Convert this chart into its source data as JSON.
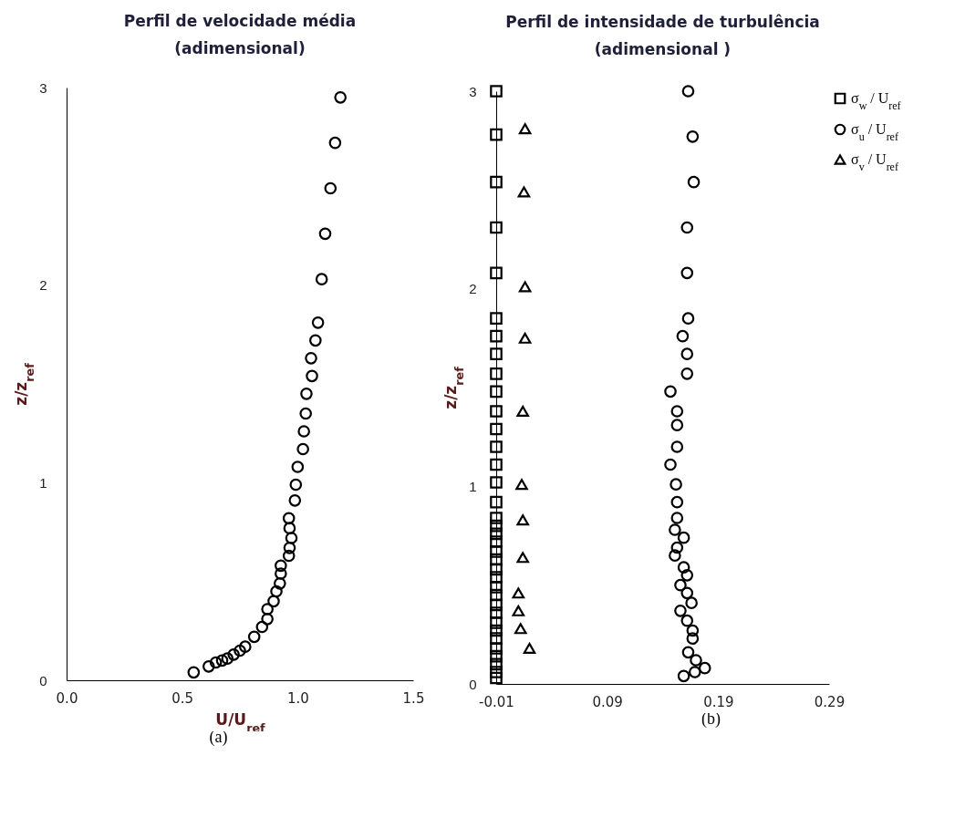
{
  "chart_data": [
    {
      "type": "scatter",
      "title": "Perfil  de velocidade média\n(adimensional)",
      "xlabel": "U/U$_{ref}$",
      "ylabel": "z/z$_{ref}$",
      "annotations": [
        "(a)"
      ],
      "xlim": [
        0,
        1.5
      ],
      "xticks": [
        {
          "value": 0,
          "label": "0.0"
        },
        {
          "value": 0.5,
          "label": "0.5"
        },
        {
          "value": 1,
          "label": "1.0"
        },
        {
          "value": 1.5,
          "label": "1.5"
        }
      ],
      "ylim": [
        0,
        3
      ],
      "yticks": [
        0,
        1,
        2,
        3
      ],
      "grid": false,
      "series": [
        {
          "color": "#000000",
          "marker": "circle",
          "x": [
            1.185,
            1.162,
            1.142,
            1.119,
            1.104,
            1.088,
            1.077,
            1.058,
            1.062,
            1.038,
            1.035,
            1.027,
            1.023,
            1.0,
            0.992,
            0.988,
            0.962,
            0.965,
            0.973,
            0.965,
            0.962,
            0.927,
            0.927,
            0.923,
            0.908,
            0.896,
            0.869,
            0.869,
            0.846,
            0.812,
            0.773,
            0.75,
            0.723,
            0.696,
            0.673,
            0.646,
            0.615,
            0.55
          ],
          "values": [
            2.95,
            2.72,
            2.49,
            2.26,
            2.03,
            1.81,
            1.72,
            1.63,
            1.54,
            1.45,
            1.35,
            1.26,
            1.17,
            1.08,
            0.99,
            0.91,
            0.82,
            0.77,
            0.72,
            0.67,
            0.63,
            0.58,
            0.54,
            0.49,
            0.45,
            0.4,
            0.36,
            0.31,
            0.27,
            0.22,
            0.17,
            0.15,
            0.13,
            0.11,
            0.1,
            0.09,
            0.07,
            0.04
          ]
        }
      ]
    },
    {
      "type": "scatter",
      "title": "Perfil de intensidade de turbulência\n(adimensional )",
      "ylabel": "z/z$_{ref}$",
      "annotations": [
        "(b)"
      ],
      "xlim": [
        -0.01,
        0.29
      ],
      "xticks": [
        -0.01,
        0.09,
        0.19,
        0.29
      ],
      "ylim": [
        0,
        3
      ],
      "yticks": [
        0,
        1,
        2,
        3
      ],
      "grid": false,
      "legend": "right",
      "series": [
        {
          "name": "σ$_{w}$ / U$_{ref}$",
          "color": "#000000",
          "marker": "square",
          "x": [
            -0.01,
            -0.01,
            -0.01,
            -0.01,
            -0.01,
            -0.01,
            -0.01,
            -0.01,
            -0.01,
            -0.01,
            -0.01,
            -0.01,
            -0.01,
            -0.01,
            -0.01,
            -0.01,
            -0.01,
            -0.01,
            -0.01,
            -0.01,
            -0.01,
            -0.01,
            -0.01,
            -0.01,
            -0.01,
            -0.01,
            -0.01,
            -0.01,
            -0.01,
            -0.01,
            -0.01,
            -0.01,
            -0.01,
            -0.01,
            -0.01,
            -0.01
          ],
          "values": [
            3.0,
            2.78,
            2.54,
            2.31,
            2.08,
            1.85,
            1.76,
            1.67,
            1.57,
            1.48,
            1.38,
            1.29,
            1.2,
            1.11,
            1.02,
            0.92,
            0.84,
            0.8,
            0.76,
            0.72,
            0.67,
            0.63,
            0.58,
            0.54,
            0.49,
            0.45,
            0.4,
            0.36,
            0.31,
            0.27,
            0.23,
            0.18,
            0.14,
            0.1,
            0.06,
            0.03
          ]
        },
        {
          "name": "σ$_{u}$ / U$_{ref}$",
          "color": "#000000",
          "marker": "circle",
          "x": [
            0.163,
            0.167,
            0.168,
            0.162,
            0.162,
            0.163,
            0.158,
            0.162,
            0.162,
            0.147,
            0.153,
            0.153,
            0.153,
            0.147,
            0.152,
            0.153,
            0.153,
            0.151,
            0.159,
            0.153,
            0.151,
            0.159,
            0.162,
            0.156,
            0.162,
            0.166,
            0.156,
            0.162,
            0.167,
            0.167,
            0.163,
            0.17,
            0.178,
            0.169,
            0.159
          ],
          "values": [
            3.0,
            2.77,
            2.54,
            2.31,
            2.08,
            1.85,
            1.76,
            1.67,
            1.57,
            1.48,
            1.38,
            1.31,
            1.2,
            1.11,
            1.01,
            0.92,
            0.84,
            0.78,
            0.74,
            0.69,
            0.65,
            0.59,
            0.55,
            0.5,
            0.46,
            0.41,
            0.37,
            0.32,
            0.27,
            0.23,
            0.16,
            0.12,
            0.08,
            0.06,
            0.04
          ]
        },
        {
          "name": "σ$_{v}$ / U$_{ref}$",
          "color": "#000000",
          "marker": "triangle",
          "x": [
            0.016,
            0.015,
            0.016,
            0.016,
            0.014,
            0.013,
            0.014,
            0.014,
            0.01,
            0.01,
            0.012,
            0.02
          ],
          "values": [
            2.81,
            2.49,
            2.01,
            1.75,
            1.38,
            1.01,
            0.83,
            0.64,
            0.46,
            0.37,
            0.28,
            0.18
          ]
        }
      ]
    }
  ]
}
